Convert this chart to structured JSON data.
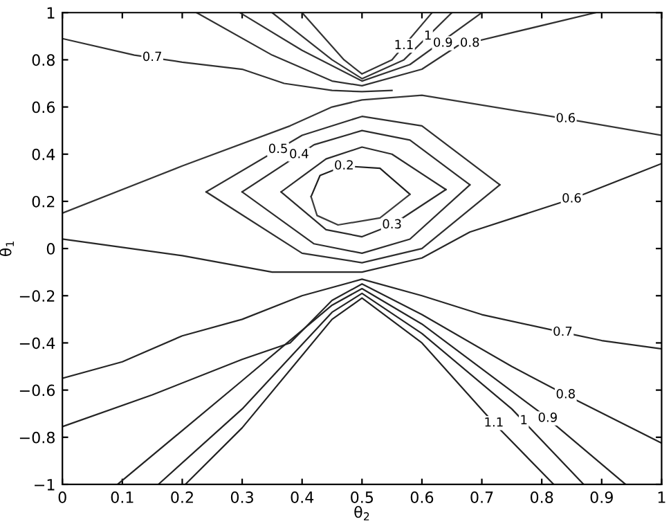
{
  "chart_data": {
    "type": "line",
    "xlabel": "θ$_{2}$",
    "ylabel": "θ$_{1}$",
    "xlim": [
      0,
      1
    ],
    "ylim": [
      -1,
      1
    ],
    "xticks": [
      0,
      0.1,
      0.2,
      0.3,
      0.4,
      0.5,
      0.6,
      0.7,
      0.8,
      0.9,
      1
    ],
    "yticks": [
      {
        "value": -1,
        "label": "−1"
      },
      {
        "value": -0.8,
        "label": "−0.8"
      },
      {
        "value": -0.6,
        "label": "−0.6"
      },
      {
        "value": -0.4,
        "label": "−0.4"
      },
      {
        "value": -0.2,
        "label": "−0.2"
      },
      0,
      0.2,
      0.4,
      0.6,
      0.8,
      1
    ],
    "grid": false,
    "legend": false,
    "marker": "none",
    "line_style": "solid",
    "series": [
      {
        "color": "#303030",
        "x": [
          0,
          0.12,
          0.2,
          0.3,
          0.37,
          0.45,
          0.5,
          0.55
        ],
        "values": [
          0.89,
          0.82,
          0.79,
          0.76,
          0.7,
          0.67,
          0.665,
          0.67
        ]
      },
      {
        "color": "#313131",
        "x": [
          0.224,
          0.35,
          0.45,
          0.5,
          0.6,
          0.66,
          0.89
        ],
        "values": [
          1,
          0.82,
          0.71,
          0.69,
          0.76,
          0.86,
          1
        ]
      },
      {
        "color": "#323232",
        "x": [
          0.296,
          0.4,
          0.5,
          0.58,
          0.7
        ],
        "values": [
          1,
          0.84,
          0.71,
          0.78,
          1
        ]
      },
      {
        "color": "#333333",
        "x": [
          0.35,
          0.45,
          0.5,
          0.57,
          0.65
        ],
        "values": [
          1,
          0.8,
          0.72,
          0.8,
          1
        ]
      },
      {
        "color": "#343434",
        "x": [
          0.4,
          0.47,
          0.5,
          0.55,
          0.617
        ],
        "values": [
          1,
          0.8,
          0.74,
          0.8,
          1
        ]
      },
      {
        "color": "#353535",
        "x": [
          0,
          0.2,
          0.38,
          0.45,
          0.5,
          0.6,
          0.84,
          1
        ],
        "values": [
          0.15,
          0.35,
          0.52,
          0.6,
          0.63,
          0.65,
          0.55,
          0.48
        ]
      },
      {
        "color": "#2f2f2f",
        "x": [
          0.24,
          0.4,
          0.5,
          0.6,
          0.73
        ],
        "values": [
          0.24,
          0.48,
          0.56,
          0.52,
          0.27
        ]
      },
      {
        "color": "#2e2e2e",
        "x": [
          0.24,
          0.4,
          0.5,
          0.6,
          0.73
        ],
        "values": [
          0.24,
          -0.02,
          -0.06,
          0.0,
          0.27
        ]
      },
      {
        "color": "#2d2d2d",
        "x": [
          0.3,
          0.42,
          0.5,
          0.58,
          0.68
        ],
        "values": [
          0.24,
          0.44,
          0.5,
          0.46,
          0.27
        ]
      },
      {
        "color": "#2c2c2c",
        "x": [
          0.3,
          0.42,
          0.5,
          0.58,
          0.68
        ],
        "values": [
          0.24,
          0.02,
          -0.02,
          0.04,
          0.27
        ]
      },
      {
        "color": "#2b2b2b",
        "x": [
          0.365,
          0.44,
          0.5,
          0.55,
          0.64
        ],
        "values": [
          0.24,
          0.38,
          0.43,
          0.4,
          0.25
        ]
      },
      {
        "color": "#2a2a2a",
        "x": [
          0.365,
          0.44,
          0.5,
          0.55,
          0.64
        ],
        "values": [
          0.24,
          0.08,
          0.05,
          0.1,
          0.25
        ]
      },
      {
        "color": "#1e1e1e",
        "x": [
          0.415,
          0.43,
          0.47,
          0.53,
          0.58
        ],
        "values": [
          0.22,
          0.31,
          0.35,
          0.34,
          0.23
        ]
      },
      {
        "color": "#3c3c3c",
        "x": [
          0.415,
          0.425,
          0.46,
          0.53,
          0.58
        ],
        "values": [
          0.22,
          0.14,
          0.1,
          0.13,
          0.23
        ]
      },
      {
        "color": "#272727",
        "x": [
          0,
          0.2,
          0.35,
          0.5,
          0.6,
          0.68,
          0.85,
          1
        ],
        "values": [
          0.04,
          -0.03,
          -0.1,
          -0.1,
          -0.04,
          0.07,
          0.21,
          0.36
        ]
      },
      {
        "color": "#262626",
        "x": [
          0,
          0.1,
          0.2,
          0.3,
          0.4,
          0.5,
          0.6,
          0.7,
          0.835,
          0.9,
          1
        ],
        "values": [
          -0.55,
          -0.48,
          -0.37,
          -0.3,
          -0.2,
          -0.13,
          -0.2,
          -0.28,
          -0.355,
          -0.39,
          -0.425
        ]
      },
      {
        "color": "#252525",
        "x": [
          0,
          0.15,
          0.3,
          0.38,
          0.45,
          0.5,
          0.6,
          0.75,
          0.84,
          1
        ],
        "values": [
          -0.755,
          -0.62,
          -0.47,
          -0.4,
          -0.22,
          -0.15,
          -0.28,
          -0.5,
          -0.62,
          -0.825
        ]
      },
      {
        "color": "#242424",
        "x": [
          0.092,
          0.3,
          0.45,
          0.5,
          0.6,
          0.8,
          0.94
        ],
        "values": [
          -1,
          -0.56,
          -0.24,
          -0.17,
          -0.32,
          -0.7,
          -1
        ]
      },
      {
        "color": "#232323",
        "x": [
          0.16,
          0.3,
          0.45,
          0.5,
          0.6,
          0.75,
          0.87
        ],
        "values": [
          -1,
          -0.68,
          -0.27,
          -0.19,
          -0.36,
          -0.68,
          -1
        ]
      },
      {
        "color": "#222222",
        "x": [
          0.205,
          0.3,
          0.45,
          0.5,
          0.6,
          0.72,
          0.82
        ],
        "values": [
          -1,
          -0.76,
          -0.3,
          -0.21,
          -0.4,
          -0.74,
          -1
        ]
      }
    ],
    "annotations": [
      {
        "text": "0.7",
        "x": 0.15,
        "y": 0.81
      },
      {
        "text": "1.1",
        "x": 0.57,
        "y": 0.86
      },
      {
        "text": "1",
        "x": 0.61,
        "y": 0.9
      },
      {
        "text": "0.9",
        "x": 0.635,
        "y": 0.87
      },
      {
        "text": "0.8",
        "x": 0.68,
        "y": 0.87
      },
      {
        "text": "0.6",
        "x": 0.84,
        "y": 0.55
      },
      {
        "text": "0.5",
        "x": 0.36,
        "y": 0.42
      },
      {
        "text": "0.4",
        "x": 0.395,
        "y": 0.398
      },
      {
        "text": "0.2",
        "x": 0.47,
        "y": 0.35
      },
      {
        "text": "0.3",
        "x": 0.55,
        "y": 0.1
      },
      {
        "text": "0.6",
        "x": 0.85,
        "y": 0.21
      },
      {
        "text": "0.7",
        "x": 0.835,
        "y": -0.355
      },
      {
        "text": "0.8",
        "x": 0.84,
        "y": -0.62
      },
      {
        "text": "0.9",
        "x": 0.81,
        "y": -0.72
      },
      {
        "text": "1",
        "x": 0.77,
        "y": -0.73
      },
      {
        "text": "1.1",
        "x": 0.72,
        "y": -0.74
      }
    ]
  }
}
